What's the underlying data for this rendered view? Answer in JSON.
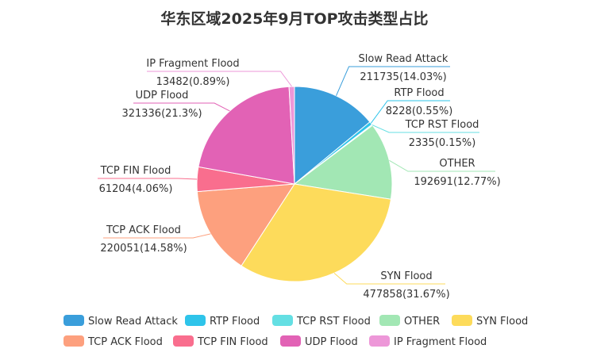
{
  "chart_data": {
    "type": "pie",
    "title": "华东区域2025年9月TOP攻击类型占比",
    "slices": [
      {
        "name": "Slow Read Attack",
        "value": 211735,
        "percent": "14.03%",
        "color": "#3a9edb"
      },
      {
        "name": "RTP Flood",
        "value": 8228,
        "percent": "0.55%",
        "color": "#2ec4ea"
      },
      {
        "name": "TCP RST Flood",
        "value": 2335,
        "percent": "0.15%",
        "color": "#64dfe3"
      },
      {
        "name": "OTHER",
        "value": 192691,
        "percent": "12.77%",
        "color": "#a2e7b4"
      },
      {
        "name": "SYN Flood",
        "value": 477858,
        "percent": "31.67%",
        "color": "#fddb5b"
      },
      {
        "name": "TCP ACK Flood",
        "value": 220051,
        "percent": "14.58%",
        "color": "#fda07e"
      },
      {
        "name": "TCP FIN Flood",
        "value": 61204,
        "percent": "4.06%",
        "color": "#f96e8e"
      },
      {
        "name": "UDP Flood",
        "value": 321336,
        "percent": "21.3%",
        "color": "#e262b5"
      },
      {
        "name": "IP Fragment Flood",
        "value": 13482,
        "percent": "0.89%",
        "color": "#ed97d8"
      }
    ],
    "legend_position": "bottom"
  }
}
